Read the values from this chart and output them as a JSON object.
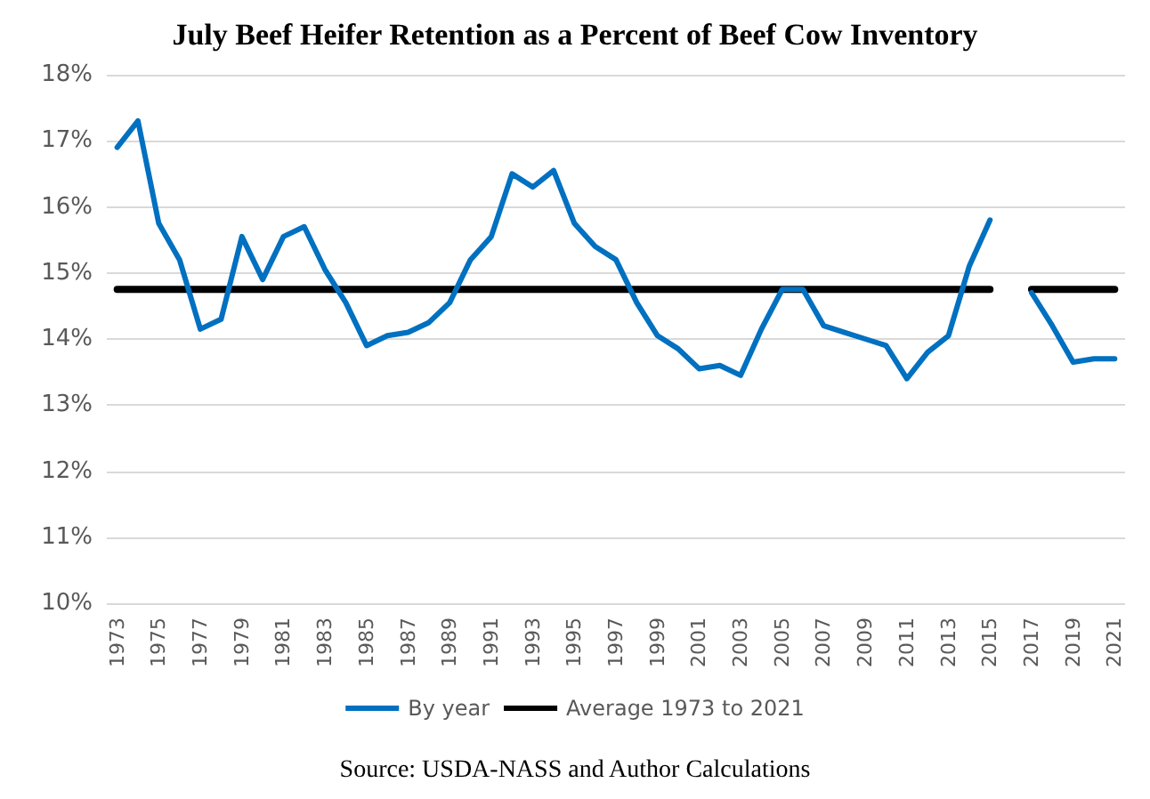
{
  "chart_data": {
    "type": "line",
    "title": "July Beef Heifer Retention as a Percent of Beef Cow Inventory",
    "annotations": [
      "Source: USDA-NASS and Author Calculations"
    ],
    "categories": [
      "1973",
      null,
      "1975",
      null,
      "1977",
      null,
      "1979",
      null,
      "1981",
      null,
      "1983",
      null,
      "1985",
      null,
      "1987",
      null,
      "1989",
      null,
      "1991",
      null,
      "1993",
      null,
      "1995",
      null,
      "1997",
      null,
      "1999",
      null,
      "2001",
      null,
      "2003",
      null,
      "2005",
      null,
      "2007",
      null,
      "2009",
      null,
      "2011",
      null,
      "2013",
      null,
      "2015",
      null,
      "2017",
      null,
      "2019",
      null,
      "2021"
    ],
    "series": [
      {
        "name": "By year",
        "color": "#0070c0",
        "values": [
          16.9,
          17.3,
          15.75,
          15.2,
          14.15,
          14.3,
          15.55,
          14.9,
          15.55,
          15.7,
          15.05,
          14.55,
          13.9,
          14.05,
          14.1,
          14.25,
          14.55,
          15.2,
          15.55,
          16.5,
          16.3,
          16.55,
          15.75,
          15.4,
          15.2,
          14.55,
          14.05,
          13.85,
          13.55,
          13.6,
          13.45,
          14.15,
          14.75,
          14.75,
          14.2,
          14.1,
          14.0,
          13.9,
          13.4,
          13.8,
          14.05,
          15.1,
          15.8,
          null,
          14.7,
          14.2,
          13.65,
          13.7,
          13.7
        ]
      },
      {
        "name": "Average 1973 to 2021",
        "color": "#000000",
        "values": [
          14.75,
          14.75,
          14.75,
          14.75,
          14.75,
          14.75,
          14.75,
          14.75,
          14.75,
          14.75,
          14.75,
          14.75,
          14.75,
          14.75,
          14.75,
          14.75,
          14.75,
          14.75,
          14.75,
          14.75,
          14.75,
          14.75,
          14.75,
          14.75,
          14.75,
          14.75,
          14.75,
          14.75,
          14.75,
          14.75,
          14.75,
          14.75,
          14.75,
          14.75,
          14.75,
          14.75,
          14.75,
          14.75,
          14.75,
          14.75,
          14.75,
          14.75,
          14.75,
          null,
          14.75,
          14.75,
          14.75,
          14.75,
          14.75
        ]
      }
    ],
    "ylim": [
      10,
      18
    ],
    "yticks": [
      {
        "value": 10,
        "label": "10%"
      },
      {
        "value": 11,
        "label": "11%"
      },
      {
        "value": 12,
        "label": "12%"
      },
      {
        "value": 13,
        "label": "13%"
      },
      {
        "value": 14,
        "label": "14%"
      },
      {
        "value": 15,
        "label": "15%"
      },
      {
        "value": 16,
        "label": "16%"
      },
      {
        "value": 17,
        "label": "17%"
      },
      {
        "value": 18,
        "label": "18%"
      }
    ],
    "grid": "y",
    "legend": "bottom",
    "marker": "none",
    "line_style": "solid"
  }
}
